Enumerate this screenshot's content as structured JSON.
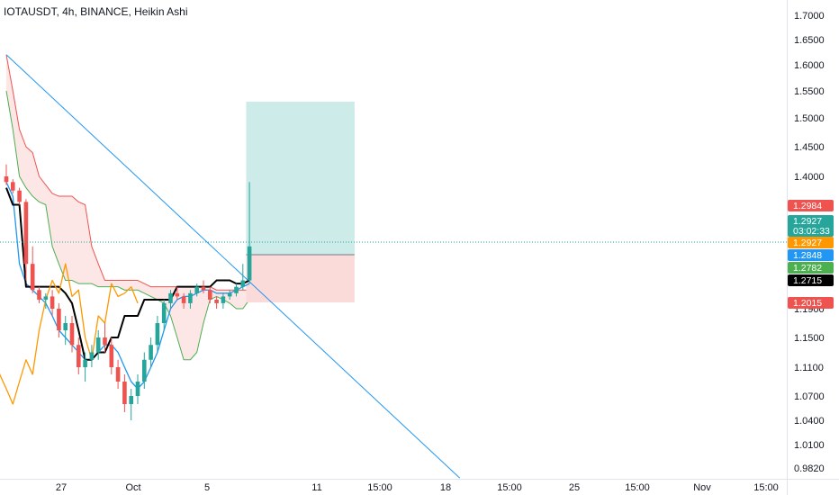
{
  "header": {
    "title": "IOTAUSDT, 4h, BINANCE, Heikin Ashi"
  },
  "colors": {
    "up": "#26a69a",
    "down": "#ef5350",
    "black_line": "#000000",
    "blue_line": "#2196f3",
    "orange_line": "#ff9800",
    "green_line": "#4caf50",
    "trend_line": "#2196f3",
    "cloud_bear": "#fbdcdc",
    "cloud_bull": "#d7eed9",
    "target_zone": "#cdebe8",
    "stop_zone": "#fbdada",
    "current_line": "#26a69a"
  },
  "chart_data": {
    "type": "candlestick",
    "symbol": "IOTAUSDT",
    "interval": "4h",
    "exchange": "BINANCE",
    "style": "Heikin Ashi",
    "ylim": [
      0.955,
      1.74
    ],
    "y_ticks": [
      "1.7000",
      "1.6500",
      "1.6000",
      "1.5500",
      "1.5000",
      "1.4500",
      "1.4000",
      "1.1900",
      "1.1500",
      "1.1100",
      "1.0700",
      "1.0400",
      "1.0100",
      "0.9820"
    ],
    "x_ticks": [
      "27",
      "Oct",
      "5",
      "11",
      "15:00",
      "18",
      "15:00",
      "25",
      "15:00",
      "Nov",
      "15:00"
    ],
    "candles": [
      [
        1.4,
        1.42,
        1.37,
        1.38
      ],
      [
        1.38,
        1.39,
        1.34,
        1.35
      ],
      [
        1.35,
        1.36,
        1.3,
        1.31
      ],
      [
        1.31,
        1.32,
        1.27,
        1.28
      ],
      [
        1.28,
        1.29,
        1.23,
        1.24
      ],
      [
        1.24,
        1.25,
        1.2,
        1.21
      ],
      [
        1.21,
        1.23,
        1.19,
        1.22
      ],
      [
        1.22,
        1.24,
        1.18,
        1.19
      ],
      [
        1.19,
        1.2,
        1.15,
        1.16
      ],
      [
        1.16,
        1.18,
        1.14,
        1.17
      ],
      [
        1.17,
        1.18,
        1.13,
        1.14
      ],
      [
        1.14,
        1.15,
        1.1,
        1.11
      ],
      [
        1.11,
        1.13,
        1.09,
        1.12
      ],
      [
        1.12,
        1.14,
        1.11,
        1.13
      ],
      [
        1.13,
        1.16,
        1.12,
        1.15
      ],
      [
        1.15,
        1.17,
        1.13,
        1.14
      ],
      [
        1.14,
        1.15,
        1.1,
        1.11
      ],
      [
        1.11,
        1.12,
        1.08,
        1.09
      ],
      [
        1.09,
        1.1,
        1.05,
        1.06
      ],
      [
        1.06,
        1.08,
        1.04,
        1.07
      ],
      [
        1.07,
        1.1,
        1.06,
        1.09
      ],
      [
        1.09,
        1.13,
        1.08,
        1.12
      ],
      [
        1.12,
        1.15,
        1.11,
        1.14
      ],
      [
        1.14,
        1.18,
        1.13,
        1.17
      ],
      [
        1.17,
        1.21,
        1.16,
        1.2
      ],
      [
        1.2,
        1.24,
        1.19,
        1.23
      ],
      [
        1.23,
        1.25,
        1.21,
        1.22
      ],
      [
        1.22,
        1.23,
        1.19,
        1.2
      ],
      [
        1.2,
        1.24,
        1.19,
        1.23
      ],
      [
        1.23,
        1.26,
        1.22,
        1.25
      ],
      [
        1.25,
        1.27,
        1.23,
        1.24
      ],
      [
        1.24,
        1.25,
        1.2,
        1.21
      ],
      [
        1.21,
        1.22,
        1.19,
        1.2
      ],
      [
        1.2,
        1.23,
        1.19,
        1.22
      ],
      [
        1.22,
        1.24,
        1.21,
        1.23
      ],
      [
        1.23,
        1.26,
        1.22,
        1.25
      ],
      [
        1.25,
        1.28,
        1.24,
        1.27
      ],
      [
        1.27,
        1.38,
        1.26,
        1.29
      ]
    ],
    "series": [
      {
        "name": "",
        "values": [
          1.38,
          1.33,
          1.28,
          1.26,
          1.24,
          1.22,
          1.2,
          1.18,
          1.16,
          1.15,
          1.14,
          1.13,
          1.12,
          1.12,
          1.13,
          1.14,
          1.14,
          1.13,
          1.11,
          1.09,
          1.08,
          1.09,
          1.11,
          1.13,
          1.16,
          1.19,
          1.21,
          1.22,
          1.22,
          1.23,
          1.24,
          1.24,
          1.23,
          1.23,
          1.23,
          1.24,
          1.25,
          1.26
        ]
      },
      {
        "name": "",
        "values": [
          1.36,
          1.3,
          1.3,
          1.25,
          1.25,
          1.25,
          1.25,
          1.25,
          1.25,
          1.23,
          1.2,
          1.16,
          1.12,
          1.12,
          1.13,
          1.13,
          1.15,
          1.15,
          1.18,
          1.18,
          1.18,
          1.21,
          1.21,
          1.21,
          1.21,
          1.21,
          1.25,
          1.25,
          1.25,
          1.25,
          1.25,
          1.25,
          1.27,
          1.27,
          1.27,
          1.26,
          1.26,
          1.27
        ]
      },
      {
        "name": "",
        "values": [
          1.14,
          1.1,
          1.08,
          1.06,
          1.09,
          1.12,
          1.1,
          1.16,
          1.21,
          1.27,
          1.23,
          1.28,
          1.22,
          1.24,
          1.15,
          1.12,
          1.18,
          1.17,
          1.26,
          1.22,
          1.23,
          1.25,
          1.2
        ]
      }
    ],
    "cloud_upper": [
      1.62,
      1.55,
      1.48,
      1.45,
      1.44,
      1.4,
      1.37,
      1.34,
      1.33,
      1.33,
      1.33,
      1.31,
      1.3,
      1.29,
      1.28,
      1.27,
      1.27,
      1.27,
      1.27,
      1.27,
      1.27,
      1.26,
      1.25,
      1.25,
      1.25,
      1.25,
      1.25,
      1.25,
      1.25,
      1.25,
      1.25,
      1.25,
      1.24,
      1.24,
      1.24,
      1.24,
      1.24,
      1.24,
      1.24,
      1.24,
      1.24,
      1.24,
      1.24,
      1.24,
      1.24,
      1.24,
      1.24,
      1.24
    ],
    "cloud_lower": [
      1.55,
      1.48,
      1.4,
      1.36,
      1.33,
      1.31,
      1.3,
      1.29,
      1.28,
      1.27,
      1.27,
      1.26,
      1.26,
      1.26,
      1.25,
      1.25,
      1.25,
      1.25,
      1.24,
      1.24,
      1.24,
      1.23,
      1.22,
      1.21,
      1.2,
      1.18,
      1.15,
      1.12,
      1.12,
      1.13,
      1.17,
      1.21,
      1.22,
      1.21,
      1.2,
      1.19,
      1.19,
      1.21,
      1.22,
      1.22,
      1.23,
      1.23,
      1.23,
      1.24,
      1.24,
      1.25,
      1.25,
      1.25
    ],
    "trend_line": {
      "from": [
        0,
        1.62
      ],
      "to": [
        69,
        0.97
      ]
    },
    "position": {
      "entry": 1.2848,
      "target": 1.53,
      "stop": 1.2015,
      "x_start": 36.5,
      "x_end": 53
    },
    "current_price_label": "1.2927",
    "countdown": "03:02:33",
    "price_badges": [
      {
        "label": "1.2984",
        "value": 1.2984,
        "color": "#ef5350"
      },
      {
        "label": "1.2927",
        "value": 1.2927,
        "color": "#26a69a",
        "extra": "03:02:33"
      },
      {
        "label": "1.2927",
        "value": 1.2927,
        "color": "#ff9800"
      },
      {
        "label": "1.2848",
        "value": 1.2848,
        "color": "#2196f3"
      },
      {
        "label": "1.2782",
        "value": 1.2782,
        "color": "#4caf50"
      },
      {
        "label": "1.2715",
        "value": 1.2715,
        "color": "#000000"
      },
      {
        "label": "1.2015",
        "value": 1.2015,
        "color": "#ef5350"
      }
    ]
  }
}
